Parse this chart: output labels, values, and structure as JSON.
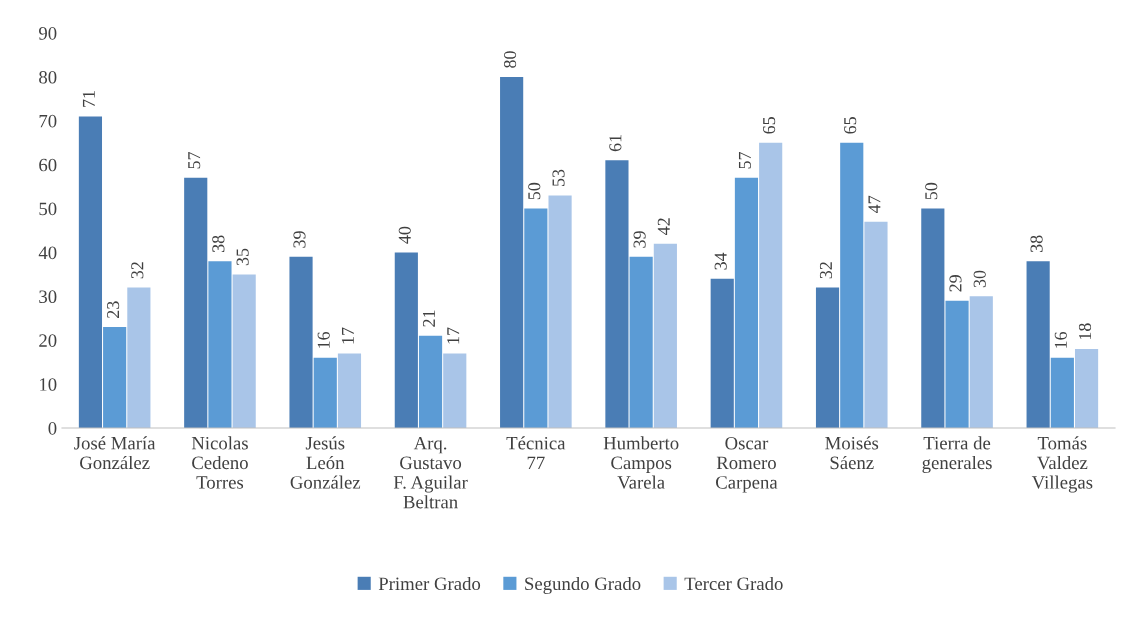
{
  "chart_data": {
    "type": "bar",
    "categories": [
      "José María\nGonzález",
      "Nicolas\nCedeno\nTorres",
      "Jesús\nLeón\nGonzález",
      "Arq.\nGustavo\nF. Aguilar\nBeltran",
      "Técnica\n77",
      "Humberto\nCampos\nVarela",
      "Oscar\nRomero\nCarpena",
      "Moisés\nSáenz",
      "Tierra de\ngenerales",
      "Tomás\nValdez\nVillegas"
    ],
    "series": [
      {
        "name": "Primer Grado",
        "color": "#4a7db5",
        "values": [
          71,
          57,
          39,
          40,
          80,
          61,
          34,
          32,
          50,
          38
        ]
      },
      {
        "name": "Segundo Grado",
        "color": "#5b9bd5",
        "values": [
          23,
          38,
          16,
          21,
          50,
          39,
          57,
          65,
          29,
          16
        ]
      },
      {
        "name": "Tercer Grado",
        "color": "#a9c5e8",
        "values": [
          32,
          35,
          17,
          17,
          53,
          42,
          65,
          47,
          30,
          18
        ]
      }
    ],
    "ylim": [
      0,
      90
    ],
    "yticks": [
      0,
      10,
      20,
      30,
      40,
      50,
      60,
      70,
      80,
      90
    ],
    "data_labels": true,
    "grid": false,
    "legend": "bottom"
  }
}
